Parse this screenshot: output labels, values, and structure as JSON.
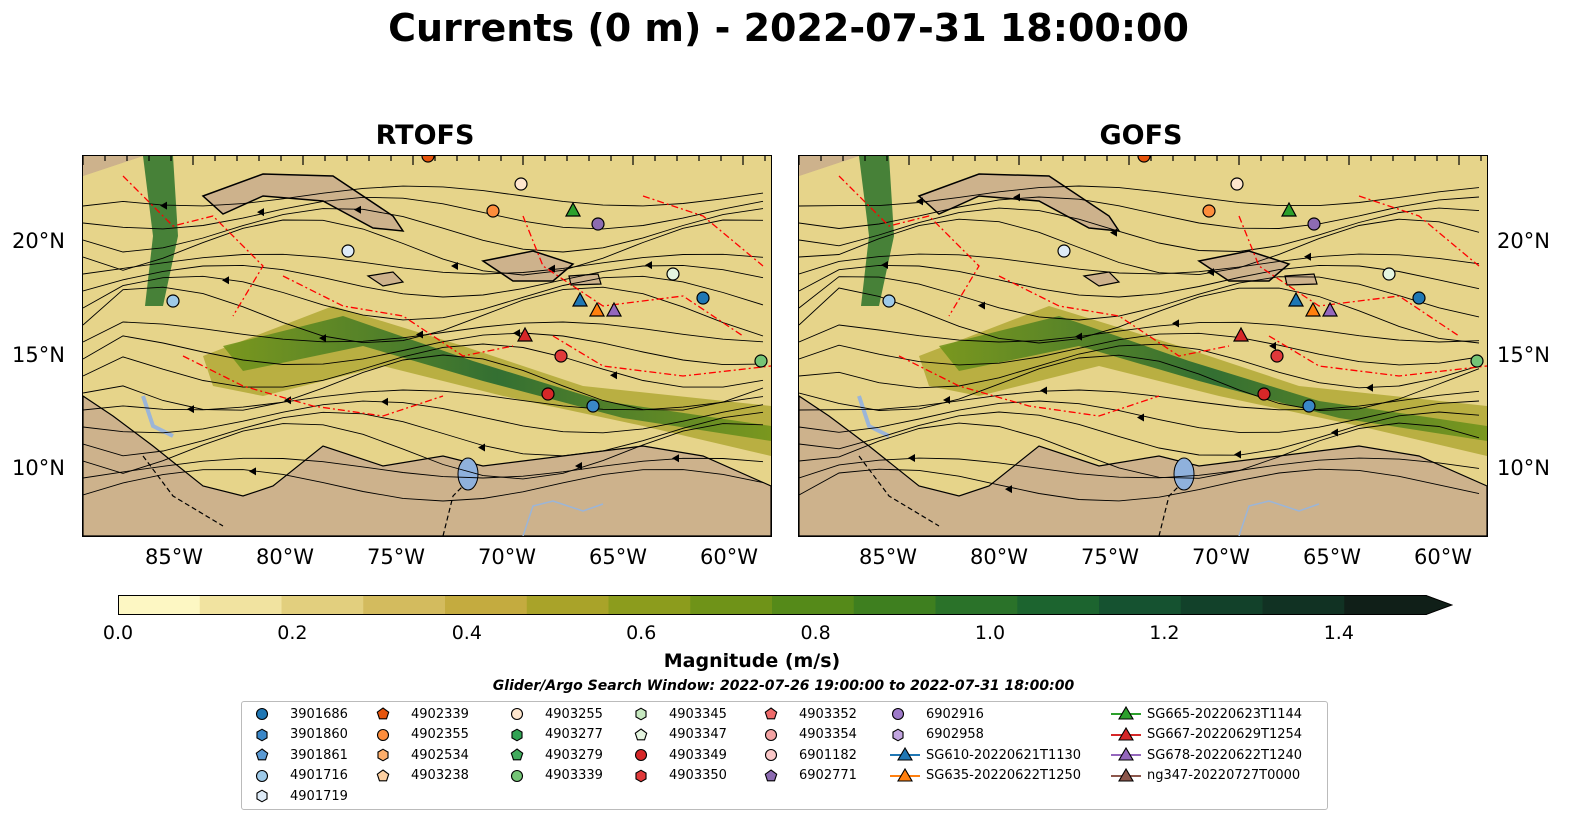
{
  "title": "Currents (0 m) - 2022-07-31 18:00:00",
  "panels": [
    {
      "title": "RTOFS"
    },
    {
      "title": "GOFS"
    }
  ],
  "axes": {
    "lat_labels": [
      "20°N",
      "15°N",
      "10°N"
    ],
    "lon_labels": [
      "85°W",
      "80°W",
      "75°W",
      "70°W",
      "65°W",
      "60°W"
    ]
  },
  "colorbar": {
    "label": "Magnitude (m/s)",
    "ticks": [
      "0.0",
      "0.2",
      "0.4",
      "0.6",
      "0.8",
      "1.0",
      "1.2",
      "1.4"
    ],
    "range": [
      0.0,
      1.5
    ],
    "extend": "max",
    "colors": [
      "#fdf7c3",
      "#f1e3a0",
      "#e2cf7e",
      "#d3bb5e",
      "#c4ab3f",
      "#a9a329",
      "#8c9c1d",
      "#6f9318",
      "#558a19",
      "#3e7f1f",
      "#2a7229",
      "#1c642f",
      "#155230",
      "#12412a",
      "#113223",
      "#101f18"
    ]
  },
  "search_window": "Glider/Argo Search Window: 2022-07-26 19:00:00 to 2022-07-31 18:00:00",
  "legend": [
    {
      "label": "3901686",
      "marker": "circle",
      "color": "#1f77b4"
    },
    {
      "label": "3901860",
      "marker": "hexagon",
      "color": "#3a87c8"
    },
    {
      "label": "3901861",
      "marker": "pentagon",
      "color": "#5a9ad4"
    },
    {
      "label": "4901716",
      "marker": "circle",
      "color": "#9ecae9"
    },
    {
      "label": "4901719",
      "marker": "hexagon",
      "color": "#deebf7"
    },
    {
      "label": "4902339",
      "marker": "pentagon",
      "color": "#e6550d"
    },
    {
      "label": "4902355",
      "marker": "circle",
      "color": "#fd8d3c"
    },
    {
      "label": "4902534",
      "marker": "hexagon",
      "color": "#fdae6b"
    },
    {
      "label": "4903238",
      "marker": "pentagon",
      "color": "#fdd0a2"
    },
    {
      "label": "4903255",
      "marker": "circle",
      "color": "#fee6ce"
    },
    {
      "label": "4903277",
      "marker": "hexagon",
      "color": "#31a354"
    },
    {
      "label": "4903279",
      "marker": "pentagon",
      "color": "#41ab5d"
    },
    {
      "label": "4903339",
      "marker": "circle",
      "color": "#74c476"
    },
    {
      "label": "4903345",
      "marker": "hexagon",
      "color": "#c7e9c0"
    },
    {
      "label": "4903347",
      "marker": "pentagon",
      "color": "#e5f5e0"
    },
    {
      "label": "4903349",
      "marker": "circle",
      "color": "#d62728"
    },
    {
      "label": "4903350",
      "marker": "hexagon",
      "color": "#e0393a"
    },
    {
      "label": "4903352",
      "marker": "pentagon",
      "color": "#ef6a6a"
    },
    {
      "label": "4903354",
      "marker": "circle",
      "color": "#f4a3a3"
    },
    {
      "label": "6901182",
      "marker": "circle",
      "color": "#fbc8c8"
    },
    {
      "label": "6902771",
      "marker": "pentagon",
      "color": "#8c6bb1"
    },
    {
      "label": "6902916",
      "marker": "circle",
      "color": "#9e7ac9"
    },
    {
      "label": "6902958",
      "marker": "hexagon",
      "color": "#c2a5e0"
    },
    {
      "label": "SG610-20220621T1130",
      "marker": "triangle",
      "color": "#1f77b4"
    },
    {
      "label": "SG635-20220622T1250",
      "marker": "triangle",
      "color": "#ff7f0e"
    },
    {
      "label": "SG665-20220623T1144",
      "marker": "triangle",
      "color": "#2ca02c"
    },
    {
      "label": "SG667-20220629T1254",
      "marker": "triangle",
      "color": "#d62728"
    },
    {
      "label": "SG678-20220622T1240",
      "marker": "triangle",
      "color": "#9467bd"
    },
    {
      "label": "ng347-20220727T0000",
      "marker": "triangle",
      "color": "#8c564b"
    }
  ]
}
